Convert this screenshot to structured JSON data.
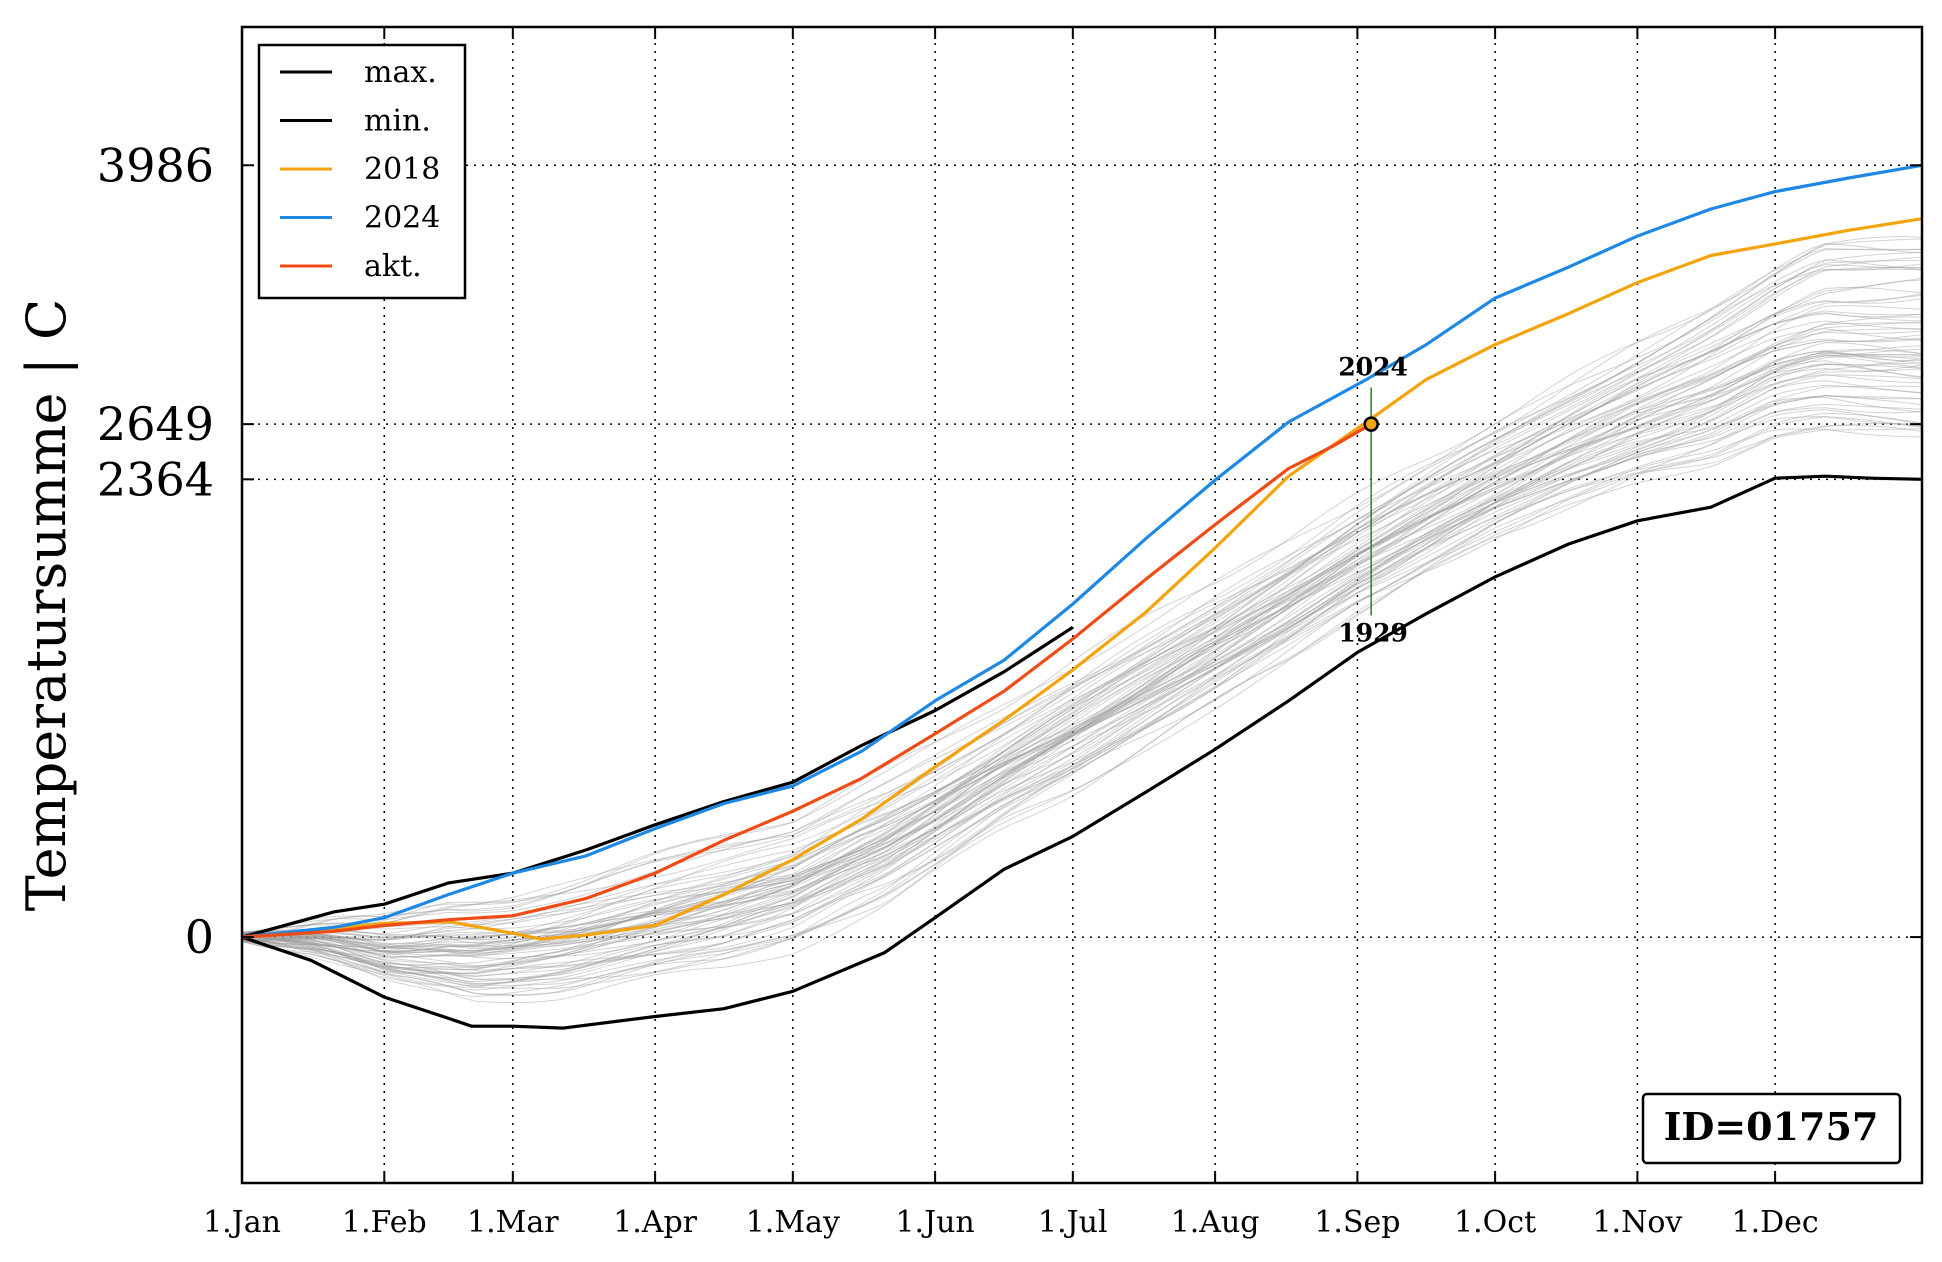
{
  "chart_data": {
    "type": "line",
    "title": "",
    "xlabel": "",
    "ylabel": "Temperatursumme | C",
    "xlim": [
      0,
      366
    ],
    "ylim": [
      -1270,
      4700
    ],
    "grid": true,
    "x_ticks": [
      {
        "day": 0,
        "label": "1.Jan"
      },
      {
        "day": 31,
        "label": "1.Feb"
      },
      {
        "day": 59,
        "label": "1.Mar"
      },
      {
        "day": 90,
        "label": "1.Apr"
      },
      {
        "day": 120,
        "label": "1.May"
      },
      {
        "day": 151,
        "label": "1.Jun"
      },
      {
        "day": 181,
        "label": "1.Jul"
      },
      {
        "day": 212,
        "label": "1.Aug"
      },
      {
        "day": 243,
        "label": "1.Sep"
      },
      {
        "day": 273,
        "label": "1.Oct"
      },
      {
        "day": 304,
        "label": "1.Nov"
      },
      {
        "day": 334,
        "label": "1.Dec"
      }
    ],
    "y_ticks": [
      {
        "value": 0,
        "label": "0"
      },
      {
        "value": 2364,
        "label": "2364"
      },
      {
        "value": 2649,
        "label": "2649"
      },
      {
        "value": 3986,
        "label": "3986"
      }
    ],
    "legend": {
      "position": "top-left",
      "entries": [
        {
          "label": "max.",
          "color": "#000000"
        },
        {
          "label": "min.",
          "color": "#000000"
        },
        {
          "label": "2018",
          "color": "#f5a30d"
        },
        {
          "label": "2024",
          "color": "#1e88e5"
        },
        {
          "label": "akt.",
          "color": "#f04a15"
        }
      ]
    },
    "series": [
      {
        "name": "max.",
        "color": "#000000",
        "x": [
          0,
          20,
          31,
          45,
          59,
          75,
          90,
          105,
          120,
          135,
          151,
          166,
          181
        ],
        "y": [
          0,
          130,
          170,
          280,
          330,
          450,
          580,
          700,
          800,
          990,
          1170,
          1370,
          1600
        ]
      },
      {
        "name": "min.",
        "color": "#000000",
        "x": [
          0,
          15,
          31,
          45,
          50,
          59,
          70,
          90,
          105,
          120,
          140,
          151,
          166,
          181,
          197,
          212,
          228,
          243,
          258,
          273,
          289,
          304,
          320,
          334,
          345,
          355,
          366
        ],
        "y": [
          0,
          -120,
          -310,
          -420,
          -460,
          -460,
          -470,
          -410,
          -370,
          -280,
          -80,
          100,
          350,
          520,
          750,
          970,
          1220,
          1470,
          1670,
          1860,
          2030,
          2150,
          2220,
          2370,
          2380,
          2370,
          2364
        ]
      },
      {
        "name": "2018",
        "color": "#f5a30d",
        "x": [
          0,
          31,
          45,
          59,
          65,
          75,
          90,
          105,
          120,
          135,
          151,
          166,
          181,
          197,
          212,
          228,
          245,
          258,
          273,
          289,
          304,
          320,
          334,
          350,
          366
        ],
        "y": [
          0,
          70,
          80,
          20,
          -10,
          10,
          60,
          220,
          400,
          610,
          880,
          1120,
          1380,
          1680,
          2010,
          2380,
          2660,
          2880,
          3060,
          3220,
          3380,
          3520,
          3580,
          3650,
          3710
        ]
      },
      {
        "name": "2024",
        "color": "#1e88e5",
        "x": [
          0,
          20,
          31,
          45,
          59,
          75,
          90,
          105,
          120,
          135,
          151,
          166,
          181,
          197,
          212,
          228,
          245,
          258,
          273,
          289,
          304,
          320,
          334,
          350,
          366
        ],
        "y": [
          0,
          50,
          100,
          220,
          330,
          420,
          560,
          690,
          780,
          960,
          1220,
          1430,
          1720,
          2060,
          2360,
          2660,
          2880,
          3060,
          3300,
          3460,
          3620,
          3760,
          3850,
          3920,
          3986
        ]
      },
      {
        "name": "akt.",
        "color": "#f04a15",
        "x": [
          0,
          20,
          31,
          45,
          59,
          75,
          90,
          105,
          120,
          135,
          151,
          166,
          181,
          197,
          212,
          228,
          238,
          246
        ],
        "y": [
          0,
          30,
          60,
          90,
          110,
          200,
          330,
          500,
          650,
          820,
          1050,
          1270,
          1540,
          1850,
          2130,
          2420,
          2540,
          2649
        ]
      }
    ],
    "current_point": {
      "x": 246,
      "y": 2649
    },
    "annotations": [
      {
        "text": "2024",
        "x": 246,
        "y": 2890
      },
      {
        "text": "1929",
        "x": 246,
        "y": 1620
      }
    ],
    "id_label": "ID=01757",
    "colors": {
      "background_lines": "#9e9e9e",
      "marker_line": "#1a8a1a",
      "marker_fill": "#f5a30d"
    }
  }
}
